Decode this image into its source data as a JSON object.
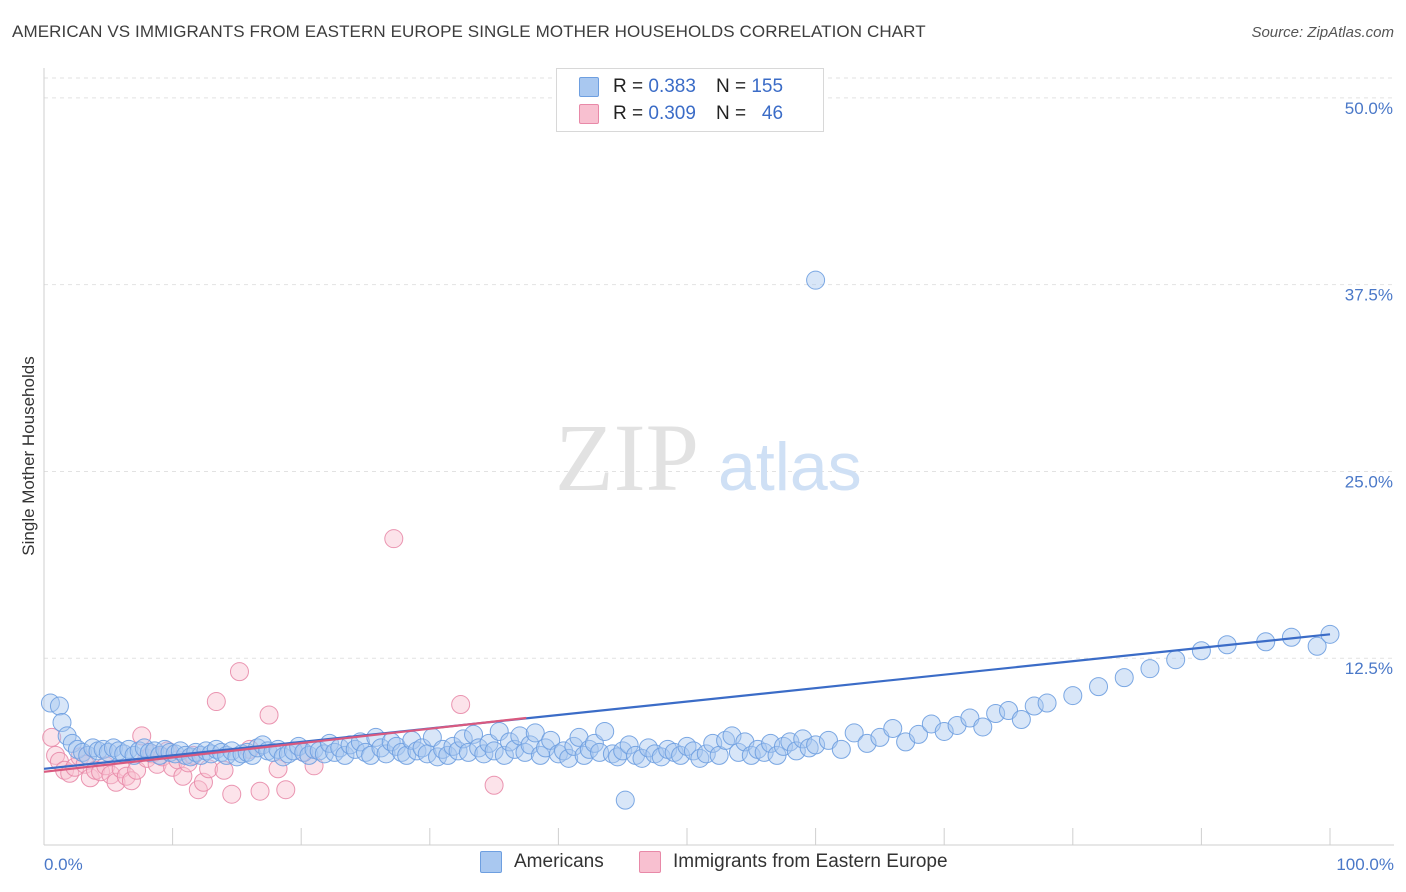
{
  "title": "AMERICAN VS IMMIGRANTS FROM EASTERN EUROPE SINGLE MOTHER HOUSEHOLDS CORRELATION CHART",
  "source": "Source: ZipAtlas.com",
  "watermark": {
    "zip": "ZIP",
    "atlas": "atlas"
  },
  "legend": {
    "r_label": "R =",
    "n_label": "N =",
    "rows": [
      {
        "r": "0.383",
        "n": "155",
        "color": "#a9c8f0",
        "border": "#6e9fe0"
      },
      {
        "r": "0.309",
        "n": "46",
        "color": "#f8c0d0",
        "border": "#e889a8"
      }
    ]
  },
  "bottom_legend": [
    {
      "label": "Americans",
      "color": "#a9c8f0",
      "border": "#6e9fe0"
    },
    {
      "label": "Immigrants from Eastern Europe",
      "color": "#f8c0d0",
      "border": "#e889a8"
    }
  ],
  "chart_data": {
    "type": "scatter",
    "ylabel": "Single Mother Households",
    "xlabel": "",
    "xlim": [
      0,
      100
    ],
    "ylim": [
      0,
      52
    ],
    "x_tick_labels": [
      "0.0%",
      "100.0%"
    ],
    "y_ticks": [
      12.5,
      25.0,
      37.5,
      50.0
    ],
    "y_tick_labels": [
      "12.5%",
      "25.0%",
      "37.5%",
      "50.0%"
    ],
    "grid": true,
    "series": [
      {
        "name": "Americans",
        "color": "#6e9fe0",
        "fill": "#a9c8f0",
        "trend": {
          "x": [
            0,
            100
          ],
          "y": [
            5.1,
            14.1
          ]
        },
        "points": [
          [
            0.5,
            9.5
          ],
          [
            1.2,
            9.3
          ],
          [
            1.4,
            8.2
          ],
          [
            1.8,
            7.3
          ],
          [
            2.2,
            6.8
          ],
          [
            2.6,
            6.4
          ],
          [
            3.0,
            6.2
          ],
          [
            3.4,
            6.0
          ],
          [
            3.8,
            6.5
          ],
          [
            4.2,
            6.3
          ],
          [
            4.6,
            6.4
          ],
          [
            5.0,
            6.2
          ],
          [
            5.4,
            6.5
          ],
          [
            5.8,
            6.3
          ],
          [
            6.2,
            6.1
          ],
          [
            6.6,
            6.4
          ],
          [
            7.0,
            6.0
          ],
          [
            7.4,
            6.3
          ],
          [
            7.8,
            6.5
          ],
          [
            8.2,
            6.2
          ],
          [
            8.6,
            6.3
          ],
          [
            9.0,
            6.0
          ],
          [
            9.4,
            6.4
          ],
          [
            9.8,
            6.2
          ],
          [
            10.2,
            6.1
          ],
          [
            10.6,
            6.3
          ],
          [
            11.0,
            6.0
          ],
          [
            11.4,
            5.9
          ],
          [
            11.8,
            6.2
          ],
          [
            12.2,
            6.0
          ],
          [
            12.6,
            6.3
          ],
          [
            13.0,
            6.1
          ],
          [
            13.4,
            6.4
          ],
          [
            13.8,
            6.2
          ],
          [
            14.2,
            6.0
          ],
          [
            14.6,
            6.3
          ],
          [
            15.0,
            5.9
          ],
          [
            15.4,
            6.1
          ],
          [
            15.8,
            6.2
          ],
          [
            16.2,
            6.0
          ],
          [
            16.6,
            6.5
          ],
          [
            17.0,
            6.7
          ],
          [
            17.4,
            6.3
          ],
          [
            17.8,
            6.2
          ],
          [
            18.2,
            6.4
          ],
          [
            18.6,
            5.9
          ],
          [
            19.0,
            6.1
          ],
          [
            19.4,
            6.3
          ],
          [
            19.8,
            6.6
          ],
          [
            20.2,
            6.2
          ],
          [
            20.6,
            6.0
          ],
          [
            21.0,
            6.4
          ],
          [
            21.4,
            6.3
          ],
          [
            21.8,
            6.1
          ],
          [
            22.2,
            6.8
          ],
          [
            22.6,
            6.2
          ],
          [
            23.0,
            6.5
          ],
          [
            23.4,
            6.0
          ],
          [
            23.8,
            6.7
          ],
          [
            24.2,
            6.4
          ],
          [
            24.6,
            6.9
          ],
          [
            25.0,
            6.2
          ],
          [
            25.4,
            6.0
          ],
          [
            25.8,
            7.2
          ],
          [
            26.2,
            6.5
          ],
          [
            26.6,
            6.1
          ],
          [
            27.0,
            6.9
          ],
          [
            27.4,
            6.6
          ],
          [
            27.8,
            6.2
          ],
          [
            28.2,
            6.0
          ],
          [
            28.6,
            7.0
          ],
          [
            29.0,
            6.3
          ],
          [
            29.4,
            6.5
          ],
          [
            29.8,
            6.1
          ],
          [
            30.2,
            7.2
          ],
          [
            30.6,
            5.9
          ],
          [
            31.0,
            6.4
          ],
          [
            31.4,
            6.0
          ],
          [
            31.8,
            6.6
          ],
          [
            32.2,
            6.3
          ],
          [
            32.6,
            7.1
          ],
          [
            33.0,
            6.2
          ],
          [
            33.4,
            7.4
          ],
          [
            33.8,
            6.5
          ],
          [
            34.2,
            6.1
          ],
          [
            34.6,
            6.8
          ],
          [
            35.0,
            6.3
          ],
          [
            35.4,
            7.6
          ],
          [
            35.8,
            6.0
          ],
          [
            36.2,
            6.9
          ],
          [
            36.6,
            6.4
          ],
          [
            37.0,
            7.3
          ],
          [
            37.4,
            6.2
          ],
          [
            37.8,
            6.7
          ],
          [
            38.2,
            7.5
          ],
          [
            38.6,
            6.0
          ],
          [
            39.0,
            6.5
          ],
          [
            39.4,
            7.0
          ],
          [
            40.0,
            6.1
          ],
          [
            40.4,
            6.3
          ],
          [
            40.8,
            5.8
          ],
          [
            41.2,
            6.6
          ],
          [
            41.6,
            7.2
          ],
          [
            42.0,
            6.0
          ],
          [
            42.4,
            6.4
          ],
          [
            42.8,
            6.8
          ],
          [
            43.2,
            6.2
          ],
          [
            43.6,
            7.6
          ],
          [
            44.2,
            6.1
          ],
          [
            44.6,
            5.9
          ],
          [
            45.0,
            6.3
          ],
          [
            45.5,
            6.7
          ],
          [
            46.0,
            6.0
          ],
          [
            46.5,
            5.8
          ],
          [
            47.0,
            6.5
          ],
          [
            47.5,
            6.1
          ],
          [
            48.0,
            5.9
          ],
          [
            48.5,
            6.4
          ],
          [
            49.0,
            6.2
          ],
          [
            49.5,
            6.0
          ],
          [
            50.0,
            6.6
          ],
          [
            50.5,
            6.3
          ],
          [
            51.0,
            5.8
          ],
          [
            51.5,
            6.1
          ],
          [
            52.0,
            6.8
          ],
          [
            52.5,
            6.0
          ],
          [
            53.0,
            7.0
          ],
          [
            53.5,
            7.3
          ],
          [
            54.0,
            6.2
          ],
          [
            54.5,
            6.9
          ],
          [
            55.0,
            6.0
          ],
          [
            55.5,
            6.4
          ],
          [
            56.0,
            6.2
          ],
          [
            56.5,
            6.8
          ],
          [
            57.0,
            6.0
          ],
          [
            57.5,
            6.6
          ],
          [
            58.0,
            6.9
          ],
          [
            58.5,
            6.3
          ],
          [
            59.0,
            7.1
          ],
          [
            59.5,
            6.5
          ],
          [
            60.0,
            6.7
          ],
          [
            61.0,
            7.0
          ],
          [
            62.0,
            6.4
          ],
          [
            63.0,
            7.5
          ],
          [
            64.0,
            6.8
          ],
          [
            65.0,
            7.2
          ],
          [
            66.0,
            7.8
          ],
          [
            67.0,
            6.9
          ],
          [
            68.0,
            7.4
          ],
          [
            69.0,
            8.1
          ],
          [
            70.0,
            7.6
          ],
          [
            71.0,
            8.0
          ],
          [
            72.0,
            8.5
          ],
          [
            73.0,
            7.9
          ],
          [
            74.0,
            8.8
          ],
          [
            75.0,
            9.0
          ],
          [
            76.0,
            8.4
          ],
          [
            77.0,
            9.3
          ],
          [
            78.0,
            9.5
          ],
          [
            80.0,
            10.0
          ],
          [
            82.0,
            10.6
          ],
          [
            84.0,
            11.2
          ],
          [
            86.0,
            11.8
          ],
          [
            88.0,
            12.4
          ],
          [
            90.0,
            13.0
          ],
          [
            92.0,
            13.4
          ],
          [
            95.0,
            13.6
          ],
          [
            97.0,
            13.9
          ],
          [
            99.0,
            13.3
          ],
          [
            100.0,
            14.1
          ],
          [
            45.2,
            3.0
          ],
          [
            60.0,
            37.8
          ]
        ]
      },
      {
        "name": "Immigrants from Eastern Europe",
        "color": "#e889a8",
        "fill": "#f8c0d0",
        "trend": {
          "x": [
            0,
            37.5
          ],
          "y": [
            4.9,
            8.5
          ]
        },
        "points": [
          [
            0.6,
            7.2
          ],
          [
            0.9,
            6.0
          ],
          [
            1.2,
            5.6
          ],
          [
            1.6,
            5.0
          ],
          [
            2.0,
            4.8
          ],
          [
            2.4,
            5.2
          ],
          [
            2.8,
            5.9
          ],
          [
            3.2,
            5.4
          ],
          [
            3.6,
            4.5
          ],
          [
            4.0,
            5.0
          ],
          [
            4.4,
            4.9
          ],
          [
            4.8,
            5.3
          ],
          [
            5.2,
            4.7
          ],
          [
            5.6,
            4.2
          ],
          [
            6.0,
            5.1
          ],
          [
            6.4,
            4.6
          ],
          [
            6.8,
            4.3
          ],
          [
            7.2,
            5.0
          ],
          [
            7.6,
            7.3
          ],
          [
            8.0,
            5.8
          ],
          [
            8.4,
            6.1
          ],
          [
            8.8,
            5.4
          ],
          [
            9.2,
            5.9
          ],
          [
            9.6,
            6.3
          ],
          [
            10.0,
            5.2
          ],
          [
            10.4,
            5.7
          ],
          [
            10.8,
            4.6
          ],
          [
            11.2,
            5.5
          ],
          [
            11.6,
            6.0
          ],
          [
            12.0,
            3.7
          ],
          [
            12.4,
            4.2
          ],
          [
            12.8,
            5.1
          ],
          [
            13.4,
            9.6
          ],
          [
            14.0,
            5.0
          ],
          [
            14.6,
            3.4
          ],
          [
            15.2,
            11.6
          ],
          [
            16.0,
            6.4
          ],
          [
            16.8,
            3.6
          ],
          [
            17.5,
            8.7
          ],
          [
            18.2,
            5.1
          ],
          [
            18.8,
            3.7
          ],
          [
            20.2,
            6.2
          ],
          [
            21.0,
            5.3
          ],
          [
            27.2,
            20.5
          ],
          [
            32.4,
            9.4
          ],
          [
            35.0,
            4.0
          ]
        ]
      }
    ]
  }
}
